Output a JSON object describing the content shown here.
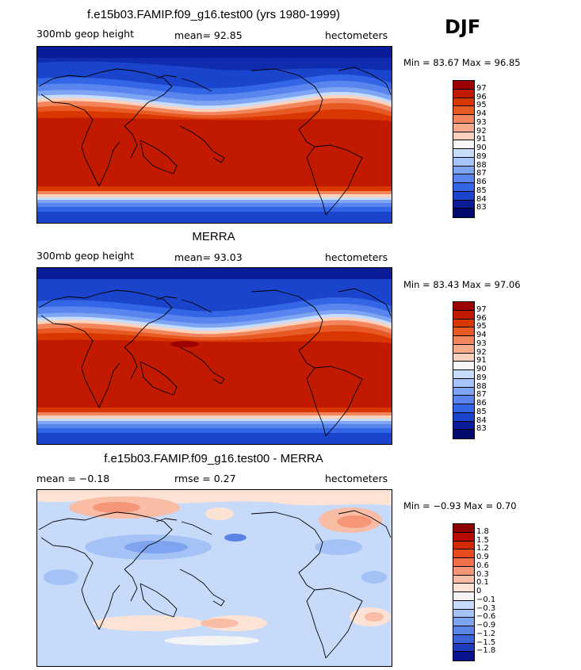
{
  "season": "DJF",
  "panels": [
    {
      "title": "f.e15b03.FAMIP.f09_g16.test00 (yrs 1980-1999)",
      "left_label": "300mb geop height",
      "center_label": "mean=   92.85",
      "right_label": "hectometers",
      "minmax": "Min =  83.67 Max =  96.85",
      "colorbar": {
        "labels": [
          "97",
          "96",
          "95",
          "94",
          "93",
          "92",
          "91",
          "90",
          "89",
          "88",
          "87",
          "86",
          "85",
          "84",
          "83"
        ],
        "colors": [
          "#9c0000",
          "#c21a00",
          "#d93600",
          "#e85a24",
          "#f2855c",
          "#f8ab8a",
          "#fcd2bd",
          "#f6f6f6",
          "#c8dcfb",
          "#a6c4fa",
          "#7ea4f4",
          "#5a85ef",
          "#3366e6",
          "#1a44cc",
          "#0a1c99",
          "#000a6e"
        ]
      }
    },
    {
      "title": "MERRA",
      "left_label": "300mb geop height",
      "center_label": "mean=   93.03",
      "right_label": "hectometers",
      "minmax": "Min =  83.43 Max =  97.06",
      "colorbar": {
        "labels": [
          "97",
          "96",
          "95",
          "94",
          "93",
          "92",
          "91",
          "90",
          "89",
          "88",
          "87",
          "86",
          "85",
          "84",
          "83"
        ],
        "colors": [
          "#9c0000",
          "#c21a00",
          "#d93600",
          "#e85a24",
          "#f2855c",
          "#f8ab8a",
          "#fcd2bd",
          "#f6f6f6",
          "#c8dcfb",
          "#a6c4fa",
          "#7ea4f4",
          "#5a85ef",
          "#3366e6",
          "#1a44cc",
          "#0a1c99",
          "#000a6e"
        ]
      }
    },
    {
      "title": "f.e15b03.FAMIP.f09_g16.test00 - MERRA",
      "left_label": "mean =   −0.18",
      "center_label": "rmse =    0.27",
      "right_label": "hectometers",
      "minmax": "Min =  −0.93 Max =   0.70",
      "colorbar": {
        "labels": [
          "1.8",
          "1.5",
          "1.2",
          "0.9",
          "0.6",
          "0.3",
          "0.1",
          "0",
          "−0.1",
          "−0.3",
          "−0.6",
          "−0.9",
          "−1.2",
          "−1.5",
          "−1.8"
        ],
        "colors": [
          "#8c0000",
          "#b80c00",
          "#d42800",
          "#e84c1e",
          "#f0704a",
          "#f59678",
          "#f9bda6",
          "#fde3d6",
          "#f4f4f4",
          "#c8dafa",
          "#a4c2f6",
          "#7ea3ef",
          "#5a84e6",
          "#3a63d8",
          "#1e3cbc",
          "#0a1290"
        ]
      }
    }
  ]
}
